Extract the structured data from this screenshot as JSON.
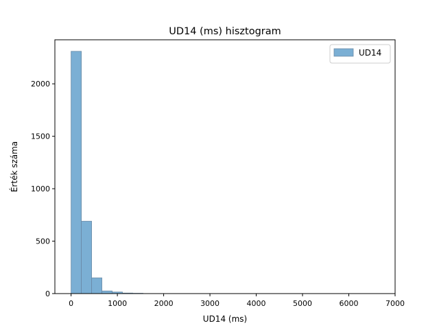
{
  "chart_data": {
    "type": "bar",
    "title": "UD14 (ms) hisztogram",
    "xlabel": "UD14 (ms)",
    "ylabel": "Érték száma",
    "xlim": [
      -350,
      7000
    ],
    "ylim": [
      0,
      2420
    ],
    "xticks": [
      0,
      1000,
      2000,
      3000,
      4000,
      5000,
      6000,
      7000
    ],
    "yticks": [
      0,
      500,
      1000,
      1500,
      2000
    ],
    "bin_edges": [
      0,
      222,
      444,
      666,
      888,
      1110,
      1332,
      1554
    ],
    "series": [
      {
        "name": "UD14",
        "values": [
          2310,
          690,
          150,
          25,
          15,
          5,
          3
        ]
      }
    ],
    "legend_position": "top-right",
    "grid": false,
    "colors": {
      "bar_fill": "#7bafd4",
      "bar_edge": "#6a8aa6",
      "axes": "#000000"
    }
  }
}
